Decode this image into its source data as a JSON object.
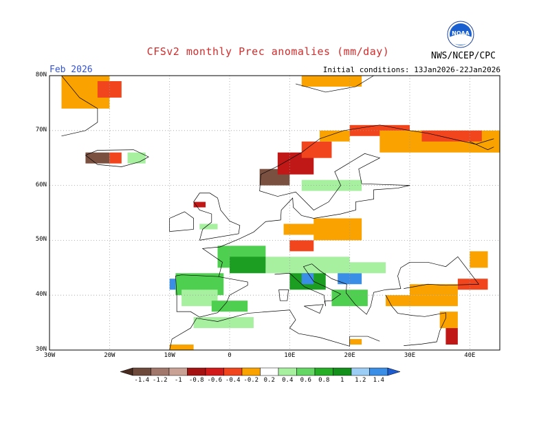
{
  "header": {
    "title": "CFSv2 monthly Prec anomalies (mm/day)",
    "month": "Feb 2026",
    "initial_conditions": "Initial conditions: 13Jan2026-22Jan2026",
    "agency": "NWS/NCEP/CPC",
    "logo_text": "NOAA"
  },
  "axes": {
    "lat_labels": [
      "80N",
      "70N",
      "60N",
      "50N",
      "40N",
      "30N"
    ],
    "lat_values": [
      80,
      70,
      60,
      50,
      40,
      30
    ],
    "lon_labels": [
      "30W",
      "20W",
      "10W",
      "0",
      "10E",
      "20E",
      "30E",
      "40E"
    ],
    "lon_values": [
      -30,
      -20,
      -10,
      0,
      10,
      20,
      30,
      40
    ],
    "lon_range": [
      -30,
      45
    ],
    "lat_range": [
      30,
      80
    ]
  },
  "colorbar": {
    "labels": [
      "-1.4",
      "-1.2",
      "-1",
      "-0.8",
      "-0.6",
      "-0.4",
      "-0.2",
      "0.2",
      "0.4",
      "0.6",
      "0.8",
      "1",
      "1.2",
      "1.4"
    ],
    "colors": [
      "#6e4a3c",
      "#a0776a",
      "#c9a295",
      "#a51212",
      "#d21a1a",
      "#f0451d",
      "#f9a200",
      "#ffffff",
      "#a6f0a0",
      "#63d663",
      "#27ae27",
      "#12901a",
      "#9bcdf5",
      "#3a8ee6"
    ],
    "low_color": "#4a2b20",
    "high_color": "#1e5cd0"
  },
  "colors": {
    "orange": "#f9a200",
    "red": "#f0451d",
    "darkred": "#c01717",
    "brown": "#7a5040",
    "lightgreen": "#a6f0a0",
    "green": "#4fcf4f",
    "darkgreen": "#1c9e23",
    "blue": "#3a8ee6",
    "lightblue": "#9bcdf5"
  }
}
